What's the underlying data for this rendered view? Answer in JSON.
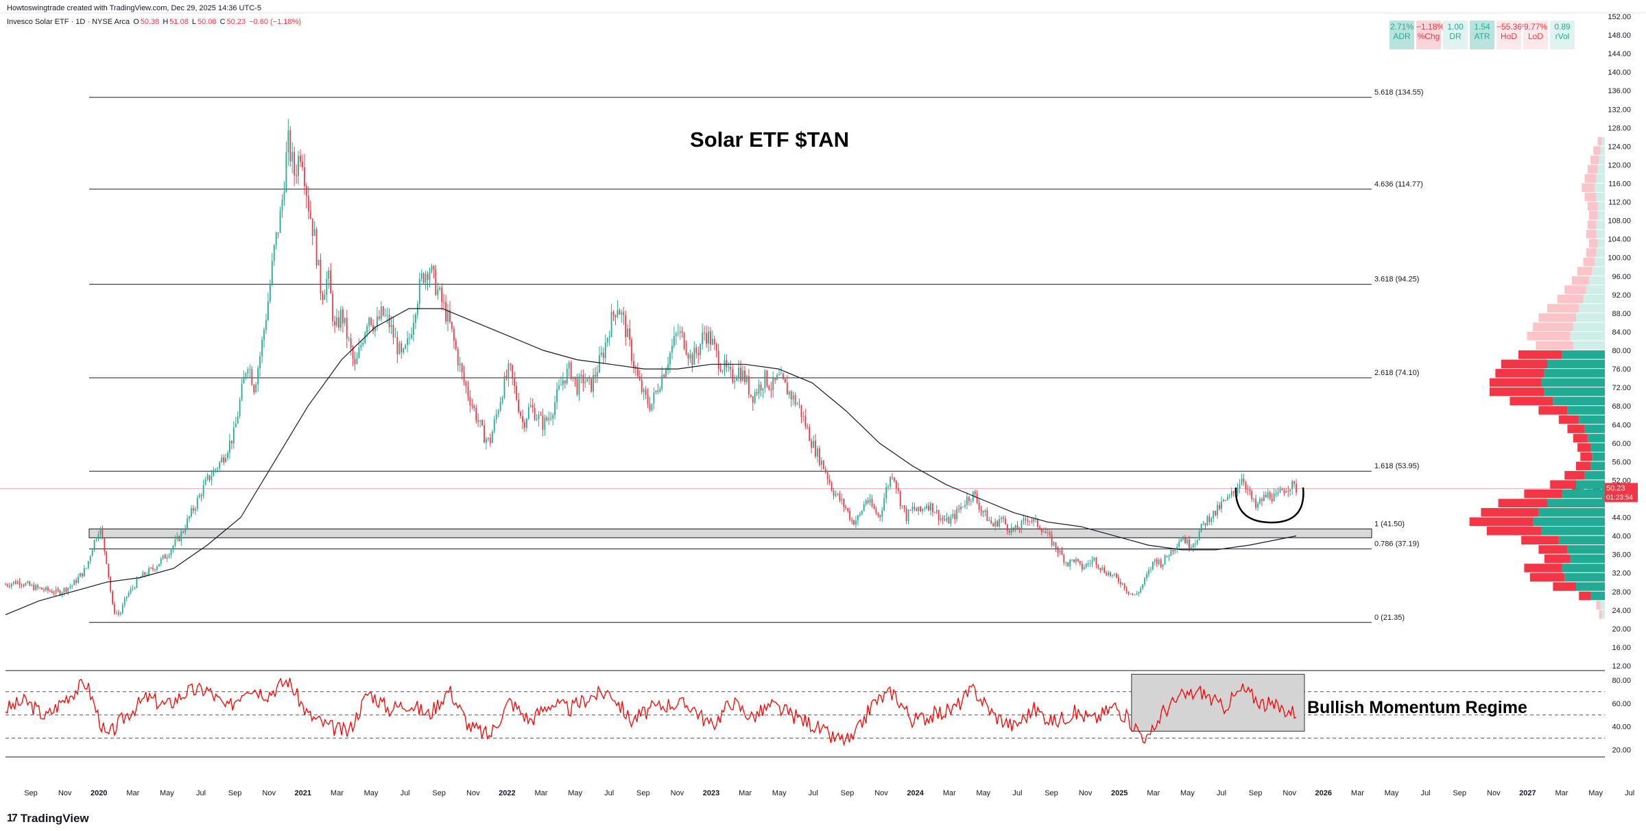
{
  "header": {
    "author_line": "Howtoswingtrade created with TradingView.com, Dec 29, 2025 14:36 UTC-5"
  },
  "legend": {
    "symbol": "Invesco Solar ETF · 1D · NYSE Arca",
    "open_label": "O",
    "open": "50.38",
    "high_label": "H",
    "high": "51.08",
    "low_label": "L",
    "low": "50.08",
    "close_label": "C",
    "close": "50.23",
    "change": "−0.60 (−1.18%)"
  },
  "stats": [
    {
      "value": "2.71%",
      "label": "ADR",
      "style": "pos"
    },
    {
      "value": "−1.18%",
      "label": "%Chg",
      "style": "neg-box"
    },
    {
      "value": "1.00",
      "label": "DR",
      "style": "pos-light"
    },
    {
      "value": "1.54",
      "label": "ATR",
      "style": "pos"
    },
    {
      "value": "−55.36%",
      "label": "HoD",
      "style": "neg-light"
    },
    {
      "value": "9.77%",
      "label": "LoD",
      "style": "neg-light"
    },
    {
      "value": "0.89",
      "label": "rVol",
      "style": "pos-light"
    }
  ],
  "chart_title": "Solar ETF $TAN",
  "momentum_label": "Bullish Momentum Regime",
  "price_tag": {
    "ticker": "TAN",
    "price": "50.23",
    "countdown": "01:23:54"
  },
  "colors": {
    "up": "#22ab94",
    "down": "#f23645",
    "rsi": "#ff0000",
    "vp_up": "#22ab94",
    "vp_down": "#f23645",
    "grid": "#e0e3eb",
    "fib": "#131722"
  },
  "footer": {
    "brand": "TradingView"
  },
  "chart_data": {
    "type": "candlestick",
    "series_name": "Invesco Solar ETF",
    "price_axis_ticks": [
      "152.00",
      "148.00",
      "144.00",
      "140.00",
      "136.00",
      "132.00",
      "128.00",
      "124.00",
      "120.00",
      "116.00",
      "112.00",
      "108.00",
      "104.00",
      "100.00",
      "96.00",
      "92.00",
      "88.00",
      "84.00",
      "80.00",
      "76.00",
      "72.00",
      "68.00",
      "64.00",
      "60.00",
      "56.00",
      "52.00",
      "48.00",
      "44.00",
      "40.00",
      "36.00",
      "32.00",
      "28.00",
      "24.00",
      "20.00",
      "16.00",
      "12.00"
    ],
    "price_ylim": [
      12,
      152
    ],
    "rsi_axis_ticks": [
      "80.00",
      "60.00",
      "40.00",
      "20.00"
    ],
    "rsi_ylim": [
      15,
      87
    ],
    "rsi_levels": [
      70,
      50,
      30
    ],
    "time_axis_labels": [
      "Sep",
      "Nov",
      "2020",
      "Mar",
      "May",
      "Jul",
      "Sep",
      "Nov",
      "2021",
      "Mar",
      "May",
      "Jul",
      "Sep",
      "Nov",
      "2022",
      "Mar",
      "May",
      "Jul",
      "Sep",
      "Nov",
      "2023",
      "Mar",
      "May",
      "Jul",
      "Sep",
      "Nov",
      "2024",
      "Mar",
      "May",
      "Jul",
      "Sep",
      "Nov",
      "2025",
      "Mar",
      "May",
      "Jul",
      "Sep",
      "Nov",
      "2026",
      "Mar",
      "May",
      "Jul",
      "Sep",
      "Nov",
      "2027",
      "Mar",
      "May",
      "Jul"
    ],
    "fib_levels": [
      {
        "ratio": "5.618",
        "price": 134.55,
        "label": "5.618 (134.55)"
      },
      {
        "ratio": "4.636",
        "price": 114.77,
        "label": "4.636 (114.77)"
      },
      {
        "ratio": "3.618",
        "price": 94.25,
        "label": "3.618 (94.25)"
      },
      {
        "ratio": "2.618",
        "price": 74.1,
        "label": "2.618 (74.10)"
      },
      {
        "ratio": "1.618",
        "price": 53.95,
        "label": "1.618 (53.95)"
      },
      {
        "ratio": "1",
        "price": 41.5,
        "label": "1 (41.50)"
      },
      {
        "ratio": "0.786",
        "price": 37.19,
        "label": "0.786 (37.19)"
      },
      {
        "ratio": "0",
        "price": 21.35,
        "label": "0 (21.35)"
      }
    ],
    "support_zone": [
      39.6,
      41.5
    ],
    "current_price": 50.23,
    "price_path": [
      [
        0,
        29.5
      ],
      [
        4,
        30.2
      ],
      [
        8,
        29
      ],
      [
        12,
        28.3
      ],
      [
        16,
        27.8
      ],
      [
        20,
        29.5
      ],
      [
        24,
        33
      ],
      [
        26,
        38
      ],
      [
        28,
        42
      ],
      [
        30,
        35
      ],
      [
        32,
        24
      ],
      [
        34,
        23
      ],
      [
        36,
        27
      ],
      [
        40,
        31
      ],
      [
        44,
        33
      ],
      [
        48,
        36
      ],
      [
        52,
        40
      ],
      [
        56,
        46
      ],
      [
        60,
        52
      ],
      [
        64,
        56
      ],
      [
        68,
        62
      ],
      [
        70,
        70
      ],
      [
        72,
        78
      ],
      [
        74,
        72
      ],
      [
        76,
        80
      ],
      [
        78,
        90
      ],
      [
        80,
        102
      ],
      [
        82,
        110
      ],
      [
        84,
        125
      ],
      [
        86,
        118
      ],
      [
        88,
        124
      ],
      [
        90,
        112
      ],
      [
        92,
        104
      ],
      [
        94,
        92
      ],
      [
        96,
        96
      ],
      [
        98,
        84
      ],
      [
        100,
        88
      ],
      [
        102,
        82
      ],
      [
        104,
        76
      ],
      [
        106,
        82
      ],
      [
        108,
        88
      ],
      [
        110,
        85
      ],
      [
        112,
        88
      ],
      [
        114,
        86
      ],
      [
        116,
        82
      ],
      [
        118,
        78
      ],
      [
        120,
        82
      ],
      [
        122,
        90
      ],
      [
        124,
        96
      ],
      [
        126,
        98
      ],
      [
        128,
        94
      ],
      [
        130,
        90
      ],
      [
        132,
        86
      ],
      [
        134,
        80
      ],
      [
        136,
        74
      ],
      [
        138,
        70
      ],
      [
        140,
        66
      ],
      [
        142,
        62
      ],
      [
        144,
        60
      ],
      [
        146,
        66
      ],
      [
        148,
        72
      ],
      [
        150,
        76
      ],
      [
        152,
        70
      ],
      [
        154,
        64
      ],
      [
        156,
        68
      ],
      [
        158,
        66
      ],
      [
        160,
        64
      ],
      [
        162,
        66
      ],
      [
        164,
        70
      ],
      [
        166,
        74
      ],
      [
        168,
        76
      ],
      [
        170,
        72
      ],
      [
        172,
        74
      ],
      [
        174,
        72
      ],
      [
        176,
        76
      ],
      [
        178,
        80
      ],
      [
        180,
        86
      ],
      [
        182,
        90
      ],
      [
        184,
        86
      ],
      [
        186,
        80
      ],
      [
        188,
        74
      ],
      [
        190,
        70
      ],
      [
        192,
        68
      ],
      [
        194,
        72
      ],
      [
        196,
        76
      ],
      [
        198,
        80
      ],
      [
        200,
        84
      ],
      [
        202,
        82
      ],
      [
        204,
        78
      ],
      [
        206,
        80
      ],
      [
        208,
        84
      ],
      [
        210,
        82
      ],
      [
        212,
        78
      ],
      [
        214,
        76
      ],
      [
        216,
        74
      ],
      [
        218,
        76
      ],
      [
        220,
        74
      ],
      [
        222,
        70
      ],
      [
        224,
        72
      ],
      [
        226,
        74
      ],
      [
        228,
        72
      ],
      [
        230,
        74
      ],
      [
        232,
        72
      ],
      [
        234,
        70
      ],
      [
        236,
        68
      ],
      [
        238,
        64
      ],
      [
        240,
        60
      ],
      [
        242,
        57
      ],
      [
        244,
        54
      ],
      [
        246,
        50
      ],
      [
        248,
        48
      ],
      [
        250,
        46
      ],
      [
        252,
        43
      ],
      [
        254,
        44
      ],
      [
        256,
        48
      ],
      [
        258,
        46
      ],
      [
        260,
        44
      ],
      [
        262,
        50
      ],
      [
        264,
        54
      ],
      [
        266,
        48
      ],
      [
        268,
        44
      ],
      [
        270,
        46
      ],
      [
        272,
        45
      ],
      [
        274,
        47
      ],
      [
        276,
        46
      ],
      [
        278,
        44
      ],
      [
        280,
        43
      ],
      [
        282,
        44
      ],
      [
        284,
        46
      ],
      [
        286,
        48
      ],
      [
        288,
        49
      ],
      [
        290,
        46
      ],
      [
        292,
        44
      ],
      [
        294,
        42
      ],
      [
        296,
        44
      ],
      [
        298,
        42
      ],
      [
        300,
        41
      ],
      [
        302,
        42
      ],
      [
        304,
        44
      ],
      [
        306,
        43
      ],
      [
        308,
        42
      ],
      [
        310,
        40
      ],
      [
        312,
        38
      ],
      [
        314,
        36
      ],
      [
        316,
        34
      ],
      [
        318,
        35
      ],
      [
        320,
        33
      ],
      [
        322,
        34
      ],
      [
        324,
        35
      ],
      [
        326,
        33
      ],
      [
        328,
        32
      ],
      [
        330,
        31
      ],
      [
        332,
        30
      ],
      [
        334,
        28
      ],
      [
        336,
        27
      ],
      [
        338,
        29
      ],
      [
        340,
        32
      ],
      [
        342,
        35
      ],
      [
        344,
        34
      ],
      [
        346,
        36
      ],
      [
        348,
        38
      ],
      [
        350,
        40
      ],
      [
        352,
        38
      ],
      [
        354,
        39
      ],
      [
        356,
        42
      ],
      [
        358,
        44
      ],
      [
        360,
        45
      ],
      [
        362,
        47
      ],
      [
        364,
        48
      ],
      [
        366,
        50
      ],
      [
        368,
        53
      ],
      [
        370,
        49
      ],
      [
        372,
        46
      ],
      [
        374,
        48
      ],
      [
        376,
        49
      ],
      [
        378,
        48
      ],
      [
        380,
        50
      ],
      [
        382,
        51
      ],
      [
        384,
        50.23
      ]
    ],
    "ma_path": [
      [
        0,
        23
      ],
      [
        10,
        26
      ],
      [
        20,
        28
      ],
      [
        30,
        30
      ],
      [
        40,
        31
      ],
      [
        50,
        33
      ],
      [
        60,
        38
      ],
      [
        70,
        44
      ],
      [
        80,
        56
      ],
      [
        90,
        68
      ],
      [
        100,
        78
      ],
      [
        110,
        85
      ],
      [
        120,
        89
      ],
      [
        130,
        89
      ],
      [
        140,
        86
      ],
      [
        150,
        83
      ],
      [
        160,
        80
      ],
      [
        170,
        78
      ],
      [
        180,
        77
      ],
      [
        190,
        76
      ],
      [
        200,
        76
      ],
      [
        210,
        77
      ],
      [
        220,
        77
      ],
      [
        230,
        76
      ],
      [
        240,
        73
      ],
      [
        250,
        67
      ],
      [
        260,
        60
      ],
      [
        270,
        55
      ],
      [
        280,
        51
      ],
      [
        290,
        48
      ],
      [
        300,
        45
      ],
      [
        310,
        43
      ],
      [
        320,
        42
      ],
      [
        330,
        40
      ],
      [
        340,
        38
      ],
      [
        350,
        37
      ],
      [
        360,
        37
      ],
      [
        370,
        38
      ],
      [
        384,
        40
      ]
    ],
    "rsi_path": [
      [
        0,
        55
      ],
      [
        6,
        62
      ],
      [
        12,
        48
      ],
      [
        18,
        65
      ],
      [
        24,
        78
      ],
      [
        30,
        30
      ],
      [
        36,
        50
      ],
      [
        42,
        65
      ],
      [
        48,
        58
      ],
      [
        54,
        70
      ],
      [
        60,
        72
      ],
      [
        66,
        55
      ],
      [
        72,
        75
      ],
      [
        78,
        68
      ],
      [
        84,
        80
      ],
      [
        90,
        50
      ],
      [
        96,
        40
      ],
      [
        102,
        35
      ],
      [
        108,
        70
      ],
      [
        114,
        55
      ],
      [
        120,
        60
      ],
      [
        126,
        50
      ],
      [
        132,
        72
      ],
      [
        138,
        40
      ],
      [
        144,
        32
      ],
      [
        150,
        62
      ],
      [
        156,
        45
      ],
      [
        162,
        60
      ],
      [
        168,
        55
      ],
      [
        174,
        66
      ],
      [
        180,
        70
      ],
      [
        186,
        45
      ],
      [
        192,
        55
      ],
      [
        198,
        60
      ],
      [
        204,
        58
      ],
      [
        210,
        40
      ],
      [
        216,
        62
      ],
      [
        222,
        48
      ],
      [
        228,
        58
      ],
      [
        234,
        50
      ],
      [
        240,
        42
      ],
      [
        246,
        30
      ],
      [
        252,
        28
      ],
      [
        258,
        60
      ],
      [
        264,
        70
      ],
      [
        270,
        45
      ],
      [
        276,
        50
      ],
      [
        282,
        55
      ],
      [
        288,
        72
      ],
      [
        294,
        50
      ],
      [
        300,
        40
      ],
      [
        306,
        55
      ],
      [
        312,
        44
      ],
      [
        318,
        52
      ],
      [
        324,
        46
      ],
      [
        330,
        58
      ],
      [
        336,
        40
      ],
      [
        340,
        28
      ],
      [
        344,
        52
      ],
      [
        350,
        66
      ],
      [
        356,
        70
      ],
      [
        362,
        56
      ],
      [
        368,
        72
      ],
      [
        374,
        60
      ],
      [
        380,
        55
      ],
      [
        384,
        52
      ]
    ],
    "volume_profile": [
      {
        "price": 125,
        "up": 2,
        "down": 3
      },
      {
        "price": 123,
        "up": 3,
        "down": 5
      },
      {
        "price": 121,
        "up": 4,
        "down": 6
      },
      {
        "price": 119,
        "up": 5,
        "down": 7
      },
      {
        "price": 117,
        "up": 6,
        "down": 8
      },
      {
        "price": 115,
        "up": 7,
        "down": 9
      },
      {
        "price": 113,
        "up": 6,
        "down": 8
      },
      {
        "price": 111,
        "up": 5,
        "down": 7
      },
      {
        "price": 109,
        "up": 5,
        "down": 6
      },
      {
        "price": 107,
        "up": 6,
        "down": 6
      },
      {
        "price": 105,
        "up": 6,
        "down": 7
      },
      {
        "price": 103,
        "up": 5,
        "down": 6
      },
      {
        "price": 101,
        "up": 6,
        "down": 7
      },
      {
        "price": 99,
        "up": 7,
        "down": 8
      },
      {
        "price": 97,
        "up": 9,
        "down": 10
      },
      {
        "price": 95,
        "up": 11,
        "down": 12
      },
      {
        "price": 93,
        "up": 13,
        "down": 15
      },
      {
        "price": 91,
        "up": 15,
        "down": 18
      },
      {
        "price": 89,
        "up": 18,
        "down": 22
      },
      {
        "price": 87,
        "up": 20,
        "down": 26
      },
      {
        "price": 85,
        "up": 22,
        "down": 28
      },
      {
        "price": 83,
        "up": 24,
        "down": 30
      },
      {
        "price": 81,
        "up": 22,
        "down": 26
      },
      {
        "price": 79,
        "up": 30,
        "down": 30
      },
      {
        "price": 77,
        "up": 40,
        "down": 32
      },
      {
        "price": 75,
        "up": 42,
        "down": 34
      },
      {
        "price": 73,
        "up": 44,
        "down": 36
      },
      {
        "price": 71,
        "up": 42,
        "down": 38
      },
      {
        "price": 69,
        "up": 36,
        "down": 30
      },
      {
        "price": 67,
        "up": 26,
        "down": 20
      },
      {
        "price": 65,
        "up": 18,
        "down": 14
      },
      {
        "price": 63,
        "up": 14,
        "down": 12
      },
      {
        "price": 61,
        "up": 12,
        "down": 10
      },
      {
        "price": 59,
        "up": 10,
        "down": 9
      },
      {
        "price": 57,
        "up": 9,
        "down": 8
      },
      {
        "price": 55,
        "up": 10,
        "down": 10
      },
      {
        "price": 53,
        "up": 14,
        "down": 14
      },
      {
        "price": 51,
        "up": 20,
        "down": 18
      },
      {
        "price": 49,
        "up": 30,
        "down": 26
      },
      {
        "price": 47,
        "up": 40,
        "down": 34
      },
      {
        "price": 45,
        "up": 46,
        "down": 40
      },
      {
        "price": 43,
        "up": 50,
        "down": 44
      },
      {
        "price": 41,
        "up": 44,
        "down": 38
      },
      {
        "price": 39,
        "up": 32,
        "down": 26
      },
      {
        "price": 37,
        "up": 26,
        "down": 20
      },
      {
        "price": 35,
        "up": 24,
        "down": 18
      },
      {
        "price": 33,
        "up": 30,
        "down": 26
      },
      {
        "price": 31,
        "up": 28,
        "down": 24
      },
      {
        "price": 29,
        "up": 20,
        "down": 16
      },
      {
        "price": 27,
        "up": 10,
        "down": 8
      },
      {
        "price": 25,
        "up": 3,
        "down": 3
      },
      {
        "price": 23,
        "up": 2,
        "down": 2
      }
    ]
  }
}
